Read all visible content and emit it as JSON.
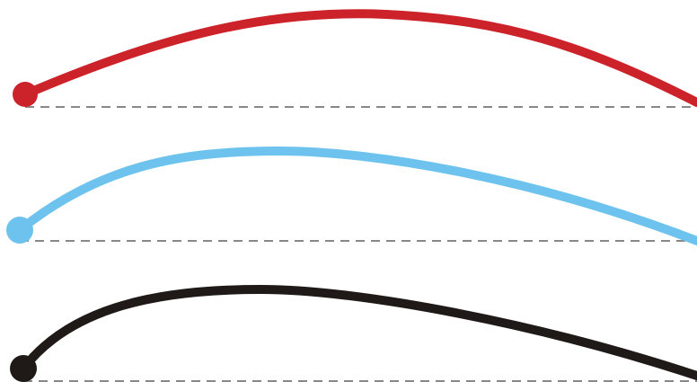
{
  "diagram": {
    "type": "trajectory-comparison",
    "trajectories": [
      {
        "color": "#cc2229",
        "baseline_color": "#888888"
      },
      {
        "color": "#6ec3ee",
        "baseline_color": "#888888"
      },
      {
        "color": "#1f1a17",
        "baseline_color": "#888888"
      }
    ]
  }
}
